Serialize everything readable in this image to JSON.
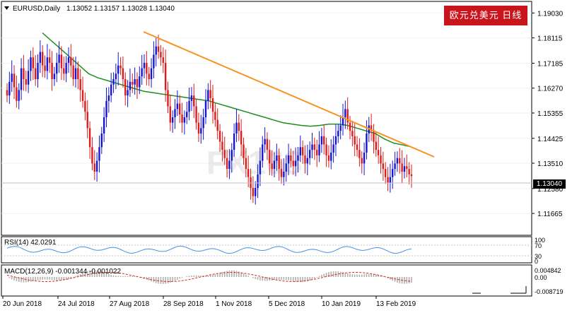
{
  "header": {
    "symbol": "EURUSD,Daily",
    "ohlc": "1.13052 1.13157 1.13028 1.13040"
  },
  "banner": {
    "text": "欧元兑美元 日线"
  },
  "current_price": "1.13040",
  "main_panel": {
    "price_ticks": [
      "1.19030",
      "1.18115",
      "1.17185",
      "1.16270",
      "1.15355",
      "1.14425",
      "1.13510",
      "1.12580",
      "1.11665"
    ]
  },
  "rsi_panel": {
    "label": "RSI(14) 42.0291",
    "ticks": [
      "100",
      "70",
      "30",
      "0"
    ]
  },
  "macd_panel": {
    "label": "MACD(12,26,9) -0.001344 -0.001022",
    "ticks": [
      "0.004842",
      "0.00",
      "-0.008719"
    ]
  },
  "time_axis": {
    "labels": [
      "20 Jun 2018",
      "24 Jul 2018",
      "27 Aug 2018",
      "28 Sep 2018",
      "1 Nov 2018",
      "5 Dec 2018",
      "10 Jan 2019",
      "13 Feb 2019"
    ]
  },
  "colors": {
    "bull": "#1515d8",
    "bear": "#e01b1b",
    "ma": "#1d8f1d",
    "trendline": "#f7931e",
    "rsi": "#4a90e2",
    "macd_signal": "#e02020",
    "macd_hist": "#b0b0b0"
  },
  "chart_data": {
    "type": "candlestick",
    "title": "EURUSD,Daily",
    "ylim": [
      1.112,
      1.193
    ],
    "close_series": [
      1.16,
      1.165,
      1.168,
      1.163,
      1.158,
      1.162,
      1.17,
      1.166,
      1.164,
      1.169,
      1.174,
      1.17,
      1.166,
      1.172,
      1.176,
      1.171,
      1.169,
      1.174,
      1.172,
      1.166,
      1.168,
      1.172,
      1.175,
      1.17,
      1.168,
      1.172,
      1.174,
      1.171,
      1.166,
      1.17,
      1.166,
      1.162,
      1.158,
      1.154,
      1.148,
      1.141,
      1.135,
      1.132,
      1.136,
      1.141,
      1.146,
      1.152,
      1.158,
      1.16,
      1.164,
      1.166,
      1.168,
      1.171,
      1.17,
      1.166,
      1.16,
      1.162,
      1.165,
      1.164,
      1.166,
      1.163,
      1.167,
      1.17,
      1.172,
      1.168,
      1.166,
      1.17,
      1.175,
      1.178,
      1.176,
      1.174,
      1.172,
      1.162,
      1.156,
      1.15,
      1.152,
      1.155,
      1.157,
      1.153,
      1.15,
      1.152,
      1.154,
      1.158,
      1.16,
      1.156,
      1.15,
      1.146,
      1.148,
      1.152,
      1.158,
      1.162,
      1.159,
      1.154,
      1.151,
      1.147,
      1.143,
      1.14,
      1.137,
      1.133,
      1.136,
      1.14,
      1.146,
      1.15,
      1.147,
      1.142,
      1.137,
      1.133,
      1.13,
      1.126,
      1.123,
      1.126,
      1.131,
      1.136,
      1.142,
      1.144,
      1.14,
      1.135,
      1.133,
      1.136,
      1.138,
      1.133,
      1.13,
      1.132,
      1.135,
      1.138,
      1.136,
      1.134,
      1.136,
      1.138,
      1.141,
      1.138,
      1.135,
      1.137,
      1.14,
      1.142,
      1.14,
      1.138,
      1.142,
      1.145,
      1.142,
      1.138,
      1.136,
      1.139,
      1.142,
      1.145,
      1.147,
      1.149,
      1.152,
      1.155,
      1.15,
      1.147,
      1.145,
      1.142,
      1.14,
      1.137,
      1.135,
      1.139,
      1.146,
      1.149,
      1.147,
      1.143,
      1.14,
      1.138,
      1.135,
      1.133,
      1.13,
      1.128,
      1.13,
      1.133,
      1.135,
      1.137,
      1.135,
      1.132,
      1.134,
      1.133,
      1.131,
      1.1304
    ],
    "ma_series": [
      1.183,
      1.18,
      1.177,
      1.174,
      1.171,
      1.168,
      1.1665,
      1.1655,
      1.1645,
      1.1635,
      1.1625,
      1.1615,
      1.161,
      1.1605,
      1.16,
      1.1595,
      1.159,
      1.1585,
      1.158,
      1.157,
      1.156,
      1.155,
      1.154,
      1.153,
      1.152,
      1.151,
      1.15,
      1.1495,
      1.149,
      1.1487,
      1.149,
      1.1495,
      1.1495,
      1.149,
      1.148,
      1.147,
      1.146,
      1.144,
      1.1425,
      1.1418,
      1.141
    ],
    "trendline": {
      "from": [
        1.1825
      ],
      "to": [
        1.1395
      ]
    },
    "rsi_value": 42.0291,
    "macd": {
      "main": -0.001344,
      "signal": -0.001022
    }
  }
}
